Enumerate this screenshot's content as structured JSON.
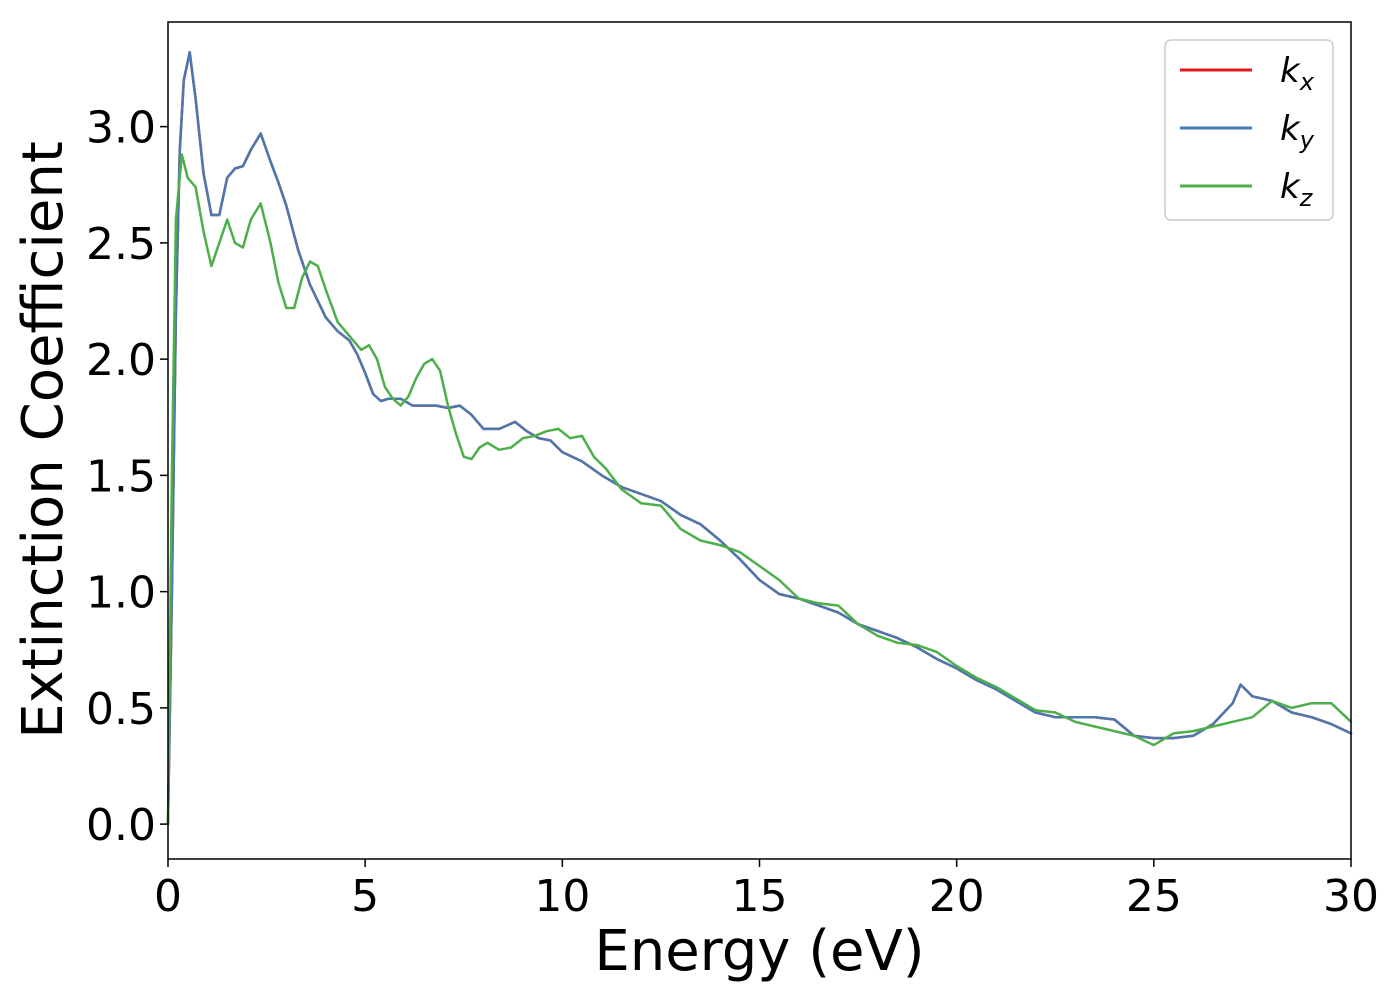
{
  "chart_data": {
    "type": "line",
    "title": "",
    "xlabel": "Energy (eV)",
    "ylabel": "Extinction Coefficient",
    "xlim": [
      0,
      30
    ],
    "ylim": [
      -0.15,
      3.45
    ],
    "xticks": [
      0,
      5,
      10,
      15,
      20,
      25,
      30
    ],
    "xtick_labels": [
      "0",
      "5",
      "10",
      "15",
      "20",
      "25",
      "30"
    ],
    "yticks": [
      0.0,
      0.5,
      1.0,
      1.5,
      2.0,
      2.5,
      3.0
    ],
    "ytick_labels": [
      "0.0",
      "0.5",
      "1.0",
      "1.5",
      "2.0",
      "2.5",
      "3.0"
    ],
    "grid": false,
    "legend": {
      "placement": "top-right",
      "entries": [
        {
          "base": "k",
          "sub": "x",
          "color": "#e41a1c"
        },
        {
          "base": "k",
          "sub": "y",
          "color": "#4a78b0"
        },
        {
          "base": "k",
          "sub": "z",
          "color": "#4daf4a"
        }
      ]
    },
    "series": [
      {
        "name": "k_x",
        "color": "#e41a1c",
        "x": [
          0,
          0.1,
          0.2,
          0.3,
          0.4,
          0.55,
          0.7,
          0.9,
          1.1,
          1.3,
          1.5,
          1.7,
          1.9,
          2.1,
          2.35,
          2.6,
          2.8,
          3.0,
          3.3,
          3.6,
          4.0,
          4.3,
          4.6,
          4.8,
          5.0,
          5.2,
          5.4,
          5.6,
          5.9,
          6.2,
          6.5,
          6.8,
          7.1,
          7.4,
          7.7,
          8.0,
          8.4,
          8.8,
          9.1,
          9.4,
          9.7,
          10.0,
          10.5,
          11.0,
          11.5,
          12.0,
          12.5,
          13.0,
          13.5,
          14.0,
          14.5,
          15.0,
          15.5,
          16.0,
          16.5,
          17.0,
          17.5,
          18.0,
          18.5,
          19.0,
          19.5,
          20.0,
          20.5,
          21.0,
          21.5,
          22.0,
          22.5,
          23.0,
          23.5,
          24.0,
          24.5,
          25.0,
          25.5,
          26.0,
          26.5,
          27.0,
          27.2,
          27.5,
          28.0,
          28.5,
          29.0,
          29.5,
          30.0
        ],
        "y": [
          0.0,
          1.0,
          2.2,
          2.9,
          3.2,
          3.32,
          3.12,
          2.8,
          2.62,
          2.62,
          2.78,
          2.82,
          2.83,
          2.9,
          2.97,
          2.85,
          2.76,
          2.66,
          2.47,
          2.32,
          2.18,
          2.12,
          2.08,
          2.02,
          1.94,
          1.85,
          1.82,
          1.83,
          1.83,
          1.8,
          1.8,
          1.8,
          1.79,
          1.8,
          1.76,
          1.7,
          1.7,
          1.73,
          1.69,
          1.66,
          1.65,
          1.6,
          1.56,
          1.5,
          1.45,
          1.42,
          1.39,
          1.33,
          1.29,
          1.22,
          1.14,
          1.05,
          0.99,
          0.97,
          0.94,
          0.91,
          0.86,
          0.83,
          0.8,
          0.76,
          0.71,
          0.67,
          0.62,
          0.58,
          0.53,
          0.48,
          0.46,
          0.46,
          0.46,
          0.45,
          0.38,
          0.37,
          0.37,
          0.38,
          0.43,
          0.52,
          0.6,
          0.55,
          0.53,
          0.48,
          0.46,
          0.43,
          0.39
        ]
      },
      {
        "name": "k_y",
        "color": "#4a78b0",
        "x": [
          0,
          0.1,
          0.2,
          0.3,
          0.4,
          0.55,
          0.7,
          0.9,
          1.1,
          1.3,
          1.5,
          1.7,
          1.9,
          2.1,
          2.35,
          2.6,
          2.8,
          3.0,
          3.3,
          3.6,
          4.0,
          4.3,
          4.6,
          4.8,
          5.0,
          5.2,
          5.4,
          5.6,
          5.9,
          6.2,
          6.5,
          6.8,
          7.1,
          7.4,
          7.7,
          8.0,
          8.4,
          8.8,
          9.1,
          9.4,
          9.7,
          10.0,
          10.5,
          11.0,
          11.5,
          12.0,
          12.5,
          13.0,
          13.5,
          14.0,
          14.5,
          15.0,
          15.5,
          16.0,
          16.5,
          17.0,
          17.5,
          18.0,
          18.5,
          19.0,
          19.5,
          20.0,
          20.5,
          21.0,
          21.5,
          22.0,
          22.5,
          23.0,
          23.5,
          24.0,
          24.5,
          25.0,
          25.5,
          26.0,
          26.5,
          27.0,
          27.2,
          27.5,
          28.0,
          28.5,
          29.0,
          29.5,
          30.0
        ],
        "y": [
          0.0,
          1.0,
          2.2,
          2.9,
          3.2,
          3.32,
          3.12,
          2.8,
          2.62,
          2.62,
          2.78,
          2.82,
          2.83,
          2.9,
          2.97,
          2.85,
          2.76,
          2.66,
          2.47,
          2.32,
          2.18,
          2.12,
          2.08,
          2.02,
          1.94,
          1.85,
          1.82,
          1.83,
          1.83,
          1.8,
          1.8,
          1.8,
          1.79,
          1.8,
          1.76,
          1.7,
          1.7,
          1.73,
          1.69,
          1.66,
          1.65,
          1.6,
          1.56,
          1.5,
          1.45,
          1.42,
          1.39,
          1.33,
          1.29,
          1.22,
          1.14,
          1.05,
          0.99,
          0.97,
          0.94,
          0.91,
          0.86,
          0.83,
          0.8,
          0.76,
          0.71,
          0.67,
          0.62,
          0.58,
          0.53,
          0.48,
          0.46,
          0.46,
          0.46,
          0.45,
          0.38,
          0.37,
          0.37,
          0.38,
          0.43,
          0.52,
          0.6,
          0.55,
          0.53,
          0.48,
          0.46,
          0.43,
          0.39
        ]
      },
      {
        "name": "k_z",
        "color": "#4daf4a",
        "x": [
          0,
          0.1,
          0.2,
          0.35,
          0.5,
          0.7,
          0.9,
          1.1,
          1.3,
          1.5,
          1.7,
          1.9,
          2.1,
          2.35,
          2.6,
          2.8,
          3.0,
          3.2,
          3.4,
          3.6,
          3.8,
          4.0,
          4.3,
          4.6,
          4.9,
          5.1,
          5.3,
          5.5,
          5.7,
          5.9,
          6.1,
          6.3,
          6.5,
          6.7,
          6.9,
          7.1,
          7.3,
          7.5,
          7.7,
          7.9,
          8.1,
          8.4,
          8.7,
          9.0,
          9.3,
          9.6,
          9.9,
          10.2,
          10.5,
          10.8,
          11.1,
          11.5,
          12.0,
          12.5,
          13.0,
          13.5,
          14.0,
          14.5,
          15.0,
          15.5,
          16.0,
          16.5,
          17.0,
          17.5,
          18.0,
          18.5,
          19.0,
          19.5,
          20.0,
          20.5,
          21.0,
          21.5,
          22.0,
          22.5,
          23.0,
          23.5,
          24.0,
          24.5,
          25.0,
          25.5,
          26.0,
          26.5,
          27.0,
          27.5,
          28.0,
          28.5,
          29.0,
          29.5,
          30.0
        ],
        "y": [
          0.0,
          1.5,
          2.6,
          2.88,
          2.78,
          2.74,
          2.55,
          2.4,
          2.5,
          2.6,
          2.5,
          2.48,
          2.6,
          2.67,
          2.5,
          2.33,
          2.22,
          2.22,
          2.35,
          2.42,
          2.4,
          2.3,
          2.16,
          2.1,
          2.04,
          2.06,
          2.0,
          1.88,
          1.83,
          1.8,
          1.84,
          1.92,
          1.98,
          2.0,
          1.95,
          1.8,
          1.68,
          1.58,
          1.57,
          1.62,
          1.64,
          1.61,
          1.62,
          1.66,
          1.67,
          1.69,
          1.7,
          1.66,
          1.67,
          1.58,
          1.53,
          1.44,
          1.38,
          1.37,
          1.27,
          1.22,
          1.2,
          1.17,
          1.11,
          1.05,
          0.97,
          0.95,
          0.94,
          0.86,
          0.81,
          0.78,
          0.77,
          0.74,
          0.68,
          0.63,
          0.59,
          0.54,
          0.49,
          0.48,
          0.44,
          0.42,
          0.4,
          0.38,
          0.34,
          0.39,
          0.4,
          0.42,
          0.44,
          0.46,
          0.53,
          0.5,
          0.52,
          0.52,
          0.44
        ]
      }
    ]
  }
}
